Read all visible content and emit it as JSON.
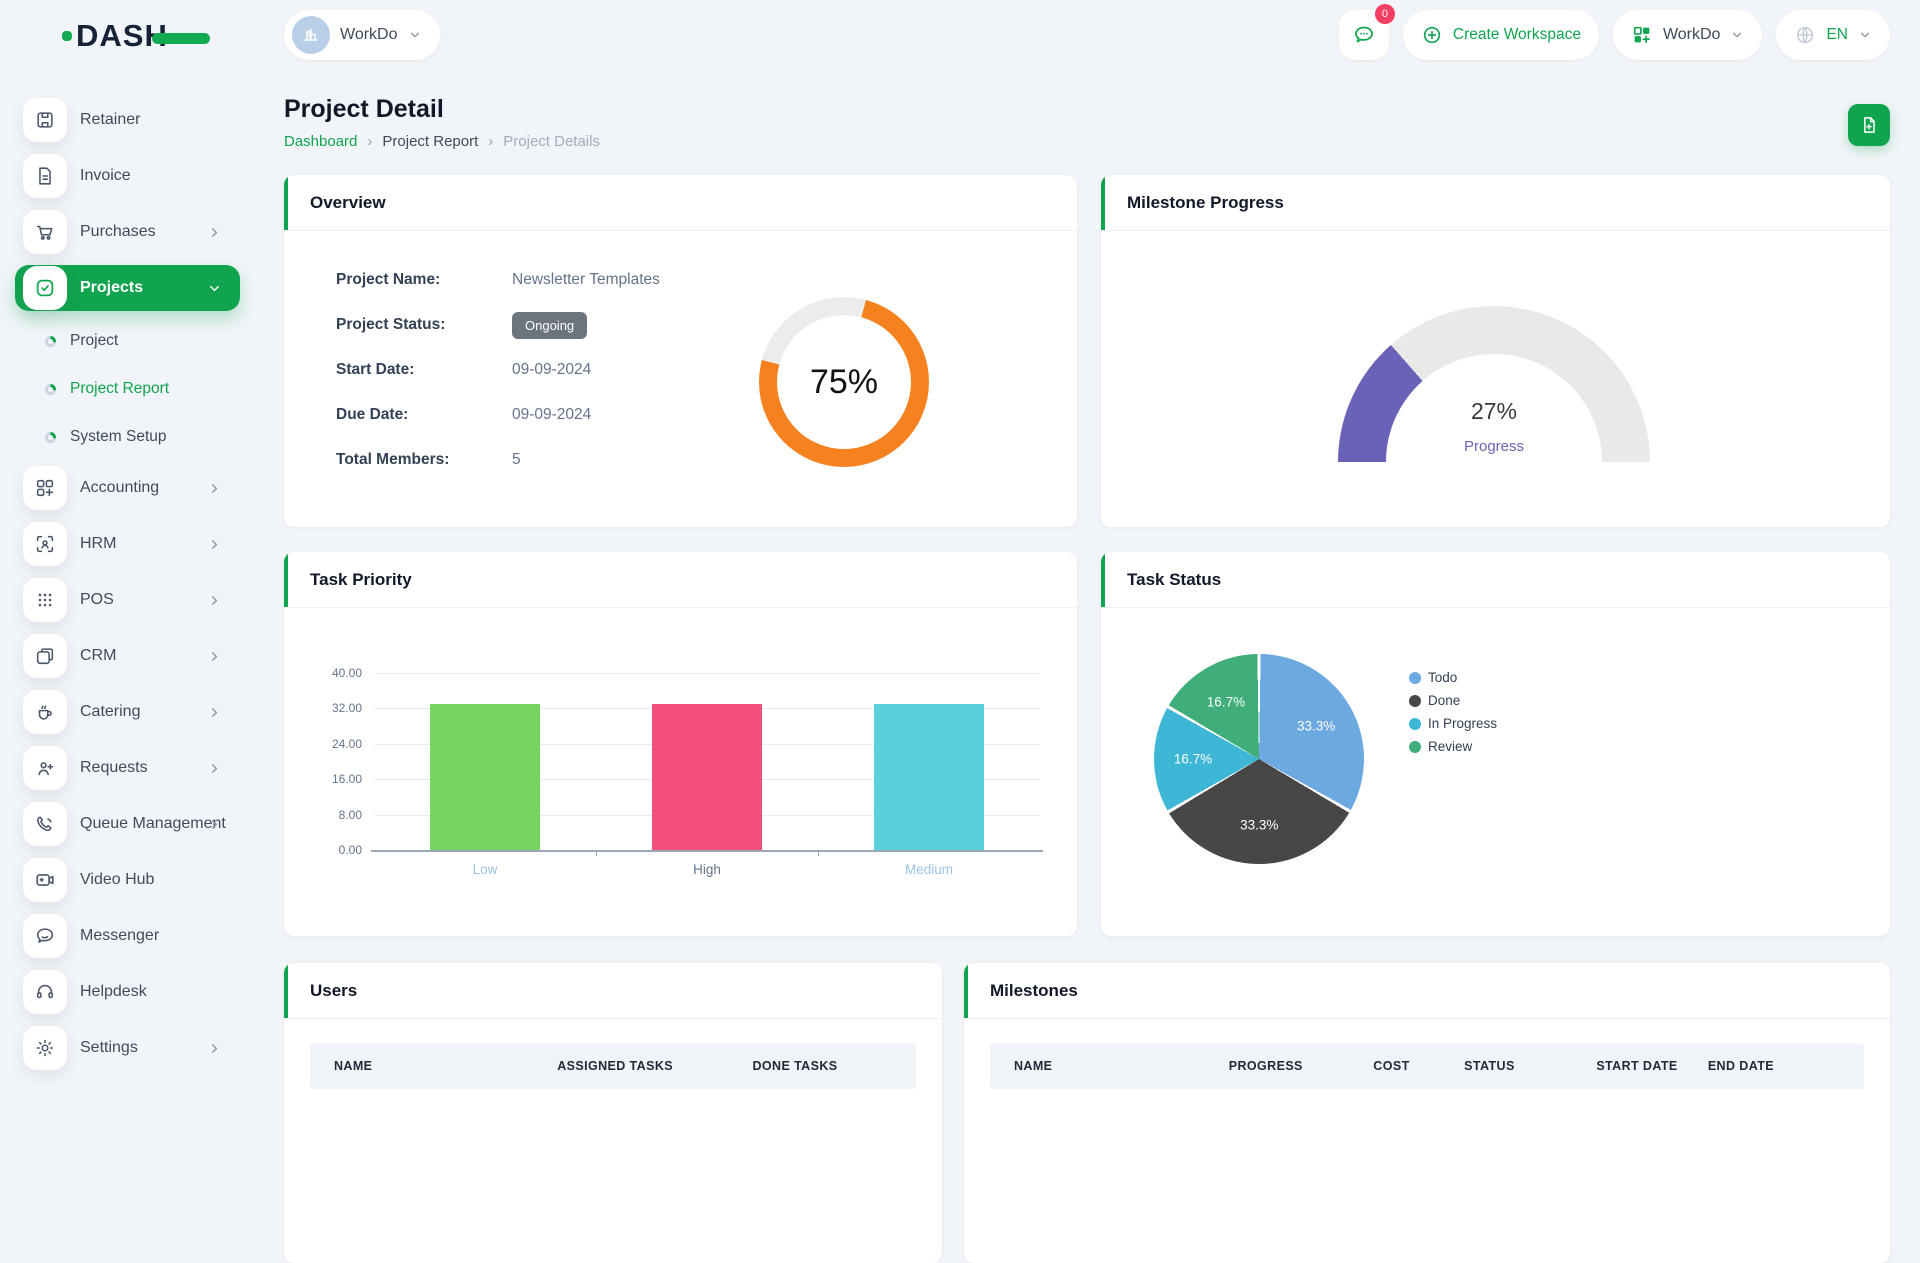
{
  "brand": {
    "name": "DASH"
  },
  "topbar": {
    "workspace": {
      "name": "WorkDo"
    },
    "messages_badge": "0",
    "create_workspace_label": "Create Workspace",
    "workspace_menu_label": "WorkDo",
    "language": "EN"
  },
  "sidebar": {
    "items": [
      {
        "label": "Retainer",
        "icon": "retainer-icon"
      },
      {
        "label": "Invoice",
        "icon": "invoice-icon"
      },
      {
        "label": "Purchases",
        "icon": "cart-icon",
        "expandable": true
      },
      {
        "label": "Projects",
        "icon": "projects-check-icon",
        "expandable": true,
        "expanded": true,
        "active": true,
        "children": [
          {
            "label": "Project",
            "active": false
          },
          {
            "label": "Project Report",
            "active": true
          },
          {
            "label": "System Setup",
            "active": false
          }
        ]
      },
      {
        "label": "Accounting",
        "icon": "accounting-icon",
        "expandable": true
      },
      {
        "label": "HRM",
        "icon": "hrm-icon",
        "expandable": true
      },
      {
        "label": "POS",
        "icon": "pos-icon",
        "expandable": true
      },
      {
        "label": "CRM",
        "icon": "crm-icon",
        "expandable": true
      },
      {
        "label": "Catering",
        "icon": "catering-icon",
        "expandable": true
      },
      {
        "label": "Requests",
        "icon": "requests-icon",
        "expandable": true
      },
      {
        "label": "Queue Management",
        "icon": "queue-icon",
        "expandable": true
      },
      {
        "label": "Video Hub",
        "icon": "video-icon"
      },
      {
        "label": "Messenger",
        "icon": "messenger-icon"
      },
      {
        "label": "Helpdesk",
        "icon": "helpdesk-icon"
      },
      {
        "label": "Settings",
        "icon": "settings-icon",
        "expandable": true
      }
    ]
  },
  "page": {
    "title": "Project Detail",
    "breadcrumb": [
      {
        "label": "Dashboard",
        "current": false
      },
      {
        "label": "Project Report",
        "current": false
      },
      {
        "label": "Project Details",
        "current": true
      }
    ]
  },
  "overview": {
    "title": "Overview",
    "fields": [
      {
        "label": "Project Name:",
        "value": "Newsletter Templates",
        "type": "text"
      },
      {
        "label": "Project Status:",
        "value": "Ongoing",
        "type": "badge"
      },
      {
        "label": "Start Date:",
        "value": "09-09-2024",
        "type": "text"
      },
      {
        "label": "Due Date:",
        "value": "09-09-2024",
        "type": "text"
      },
      {
        "label": "Total Members:",
        "value": "5",
        "type": "text"
      }
    ]
  },
  "milestone_progress": {
    "title": "Milestone Progress"
  },
  "task_priority": {
    "title": "Task Priority"
  },
  "task_status": {
    "title": "Task Status"
  },
  "users_table": {
    "title": "Users",
    "columns": [
      "NAME",
      "ASSIGNED TASKS",
      "DONE TASKS"
    ]
  },
  "milestones_table": {
    "title": "Milestones",
    "columns": [
      "NAME",
      "PROGRESS",
      "COST",
      "STATUS",
      "START DATE",
      "END DATE"
    ]
  },
  "colors": {
    "primary": "#10a44e",
    "badge_pink": "#f43f63",
    "ongoing_badge": "#6c757d"
  },
  "chart_data": [
    {
      "id": "overview-progress-donut",
      "type": "donut",
      "value": 75,
      "label": "75%",
      "color": "#f5821f",
      "track_color": "#ececec",
      "range": [
        0,
        100
      ]
    },
    {
      "id": "milestone-progress-gauge",
      "type": "gauge",
      "value": 27,
      "value_label": "27%",
      "caption": "Progress",
      "color": "#6a62b7",
      "track_color": "#e9e9e9",
      "range": [
        0,
        100
      ]
    },
    {
      "id": "task-priority-bars",
      "type": "bar",
      "title": "Task Priority",
      "categories": [
        "Low",
        "High",
        "Medium"
      ],
      "values": [
        33,
        33,
        33
      ],
      "bar_colors": [
        "#77d25f",
        "#f2507b",
        "#58d1dc"
      ],
      "category_label_colors": [
        "#9dc3e6",
        "#64748b",
        "#9dc3e6"
      ],
      "ylim": [
        0,
        40
      ],
      "ytick_labels": [
        "0.00",
        "8.00",
        "16.00",
        "24.00",
        "32.00",
        "40.00"
      ],
      "grid": true,
      "xlabel": "",
      "ylabel": ""
    },
    {
      "id": "task-status-pie",
      "type": "pie",
      "title": "Task Status",
      "labels": [
        "Todo",
        "Done",
        "In Progress",
        "Review"
      ],
      "values": [
        33.3,
        33.3,
        16.7,
        16.7
      ],
      "slice_labels": [
        "33.3%",
        "33.3%",
        "16.7%",
        "16.7%"
      ],
      "colors": [
        "#6ba9e0",
        "#474747",
        "#3eb7d7",
        "#3fae7a"
      ],
      "legend_position": "right",
      "start_angle_deg": 0,
      "direction": "clockwise"
    }
  ]
}
